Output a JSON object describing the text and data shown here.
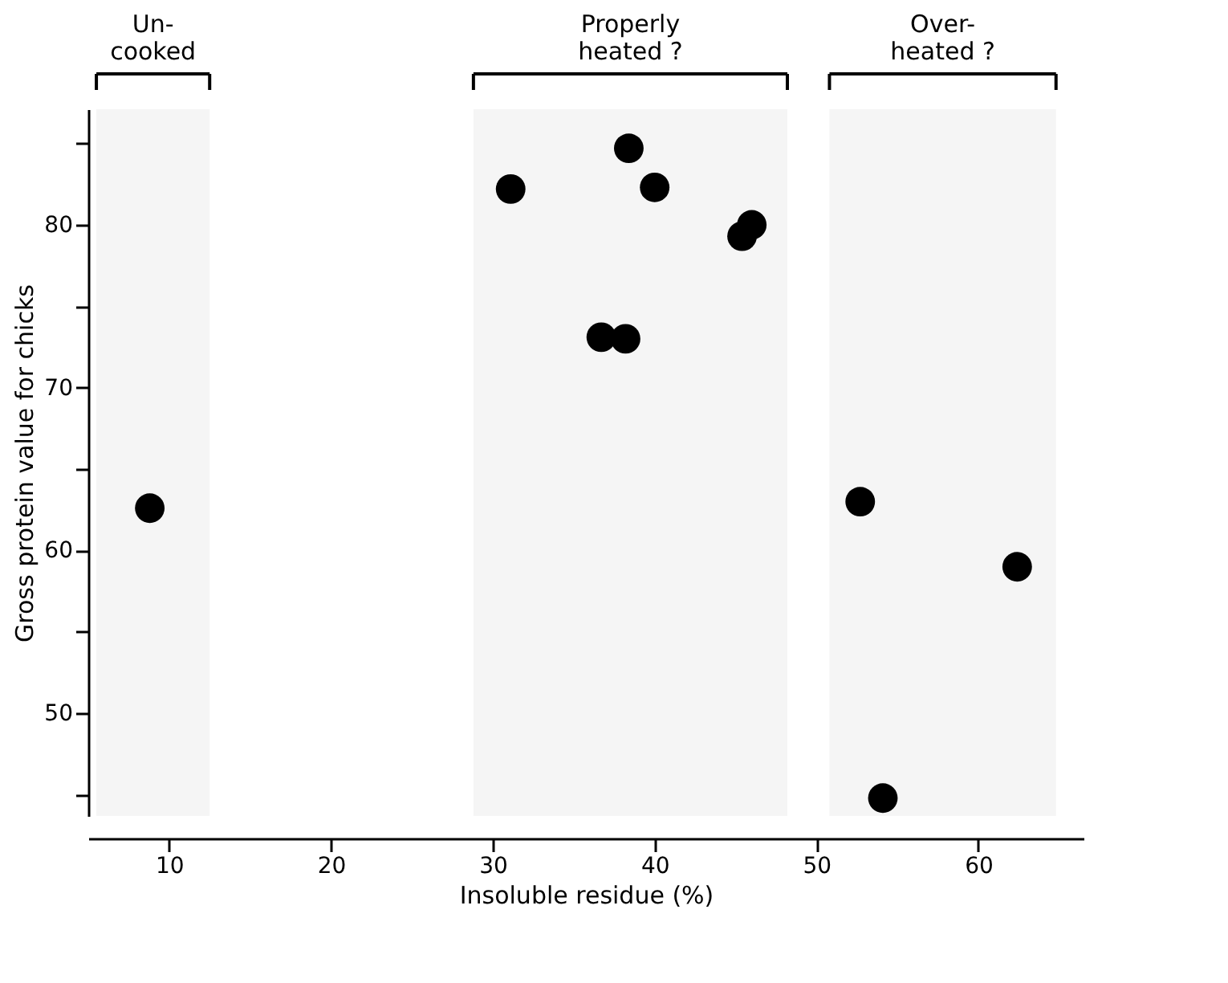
{
  "chart_data": {
    "type": "scatter",
    "xlabel": "Insoluble residue (%)",
    "ylabel": "Gross protein value for chicks",
    "x": [
      8.8,
      31.1,
      38.4,
      40.0,
      45.4,
      46.0,
      36.7,
      38.2,
      52.7,
      62.4,
      54.1
    ],
    "values": [
      62.6,
      82.2,
      84.7,
      82.3,
      79.3,
      80.0,
      73.1,
      73.0,
      63.0,
      59.0,
      44.8
    ],
    "color": "#000000",
    "marker": "circle",
    "grid": false,
    "xlim": [
      5,
      66.5
    ],
    "ylim": [
      43.7,
      87.1
    ],
    "xticks": [
      10,
      20,
      30,
      40,
      50,
      60
    ],
    "yticks": [
      {
        "value": 45,
        "label": null
      },
      50,
      {
        "value": 55,
        "label": null
      },
      60,
      {
        "value": 65,
        "label": null
      },
      70,
      {
        "value": 75,
        "label": null
      },
      80,
      {
        "value": 85,
        "label": null
      }
    ],
    "bands": [
      {
        "axis": "x",
        "from": 5.5,
        "to": 12.5,
        "label": "Un-\ncooked",
        "color": "#f5f5f5"
      },
      {
        "axis": "x",
        "from": 28.8,
        "to": 48.2,
        "label": "Properly\nheated ?",
        "color": "#f5f5f5"
      },
      {
        "axis": "x",
        "from": 50.8,
        "to": 64.8,
        "label": "Over-\nheated ?",
        "color": "#f5f5f5"
      }
    ]
  }
}
